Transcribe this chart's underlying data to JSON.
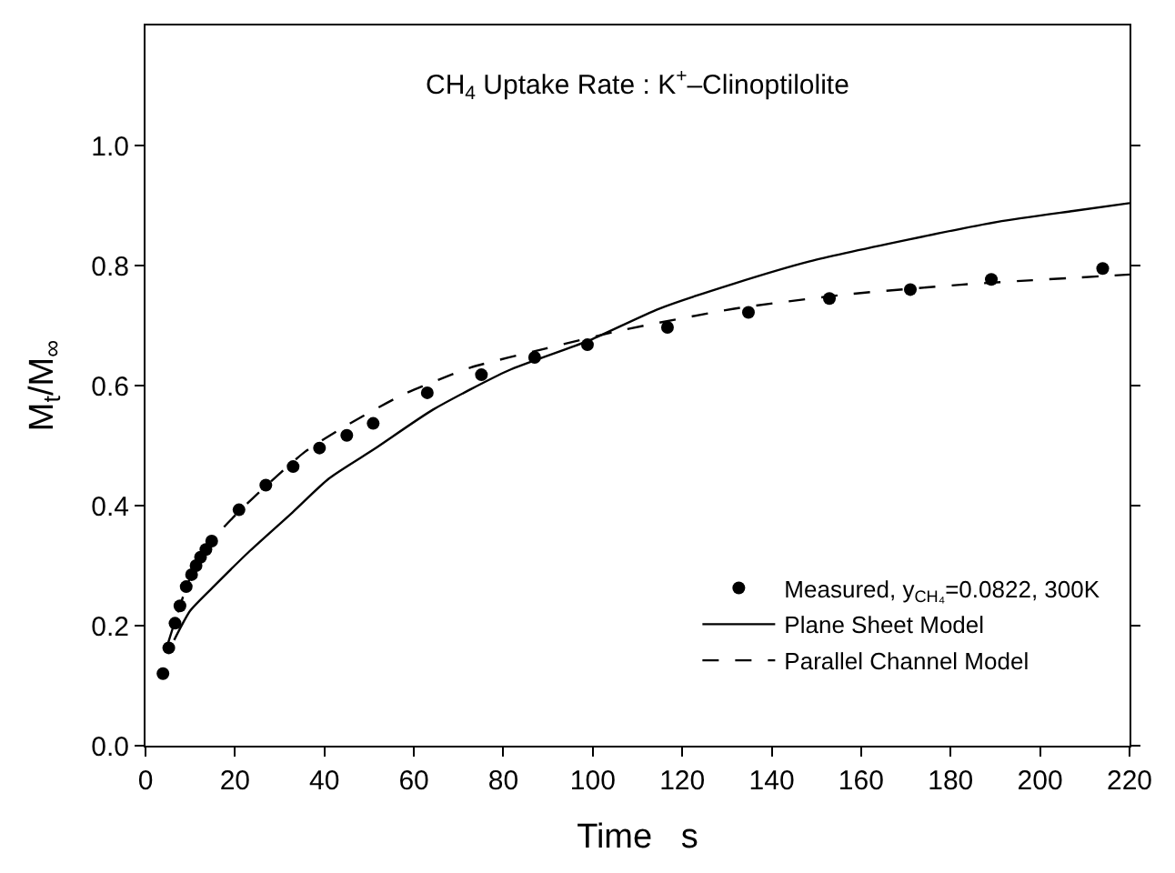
{
  "chart_data": {
    "type": "line",
    "title": "CH$_{4}$ Uptake Rate : K$^{+}$–Clinoptilolite",
    "xlabel": "Time   s",
    "ylabel": "M$_{t}$/M$_{∞}$",
    "xlim": [
      0,
      220
    ],
    "xticks": [
      0,
      20,
      40,
      60,
      80,
      100,
      120,
      140,
      160,
      180,
      200,
      220
    ],
    "ylim": [
      0,
      1.2
    ],
    "yticks": [
      {
        "value": 0,
        "label": "0.0"
      },
      0.2,
      0.4,
      0.6,
      0.8,
      {
        "value": 1,
        "label": "1.0"
      }
    ],
    "legend": "bottom right",
    "series": [
      {
        "name": "Measured, y$_{CH₄}$=0.0822, 300K",
        "type": "scatter",
        "marker": "circle",
        "color": "#000000",
        "x": [
          3.9,
          5.2,
          6.6,
          7.7,
          9.1,
          10.3,
          11.3,
          12.3,
          13.5,
          14.8,
          20.9,
          26.9,
          33.0,
          38.9,
          45.0,
          50.9,
          63.0,
          75.1,
          87.0,
          98.8,
          116.7,
          134.8,
          152.9,
          171.0,
          189.1,
          214.0
        ],
        "values": [
          0.12,
          0.163,
          0.204,
          0.233,
          0.265,
          0.285,
          0.3,
          0.314,
          0.327,
          0.341,
          0.393,
          0.434,
          0.465,
          0.496,
          0.517,
          0.537,
          0.588,
          0.618,
          0.647,
          0.668,
          0.697,
          0.722,
          0.745,
          0.76,
          0.777,
          0.795
        ]
      },
      {
        "name": "Plane Sheet Model",
        "line_style": "solid",
        "color": "#000000",
        "x": [
          6.4,
          10,
          15.2,
          23.4,
          32.9,
          41,
          51.3,
          64.3,
          81.1,
          98.8,
          114.8,
          131.6,
          148.5,
          170.4,
          190.6,
          207.4,
          220
        ],
        "values": [
          0.176,
          0.225,
          0.265,
          0.325,
          0.389,
          0.445,
          0.495,
          0.56,
          0.625,
          0.674,
          0.728,
          0.77,
          0.807,
          0.843,
          0.873,
          0.891,
          0.904
        ]
      },
      {
        "name": "Parallel Channel Model",
        "line_style": "dashed",
        "color": "#000000",
        "x": [
          5,
          10,
          15.5,
          21.4,
          28,
          35.7,
          44.1,
          57.6,
          72.7,
          89.6,
          106.4,
          131.6,
          156.9,
          182.2,
          220
        ],
        "values": [
          0.17,
          0.28,
          0.347,
          0.394,
          0.44,
          0.49,
          0.53,
          0.585,
          0.63,
          0.662,
          0.692,
          0.728,
          0.752,
          0.768,
          0.785
        ]
      }
    ]
  }
}
